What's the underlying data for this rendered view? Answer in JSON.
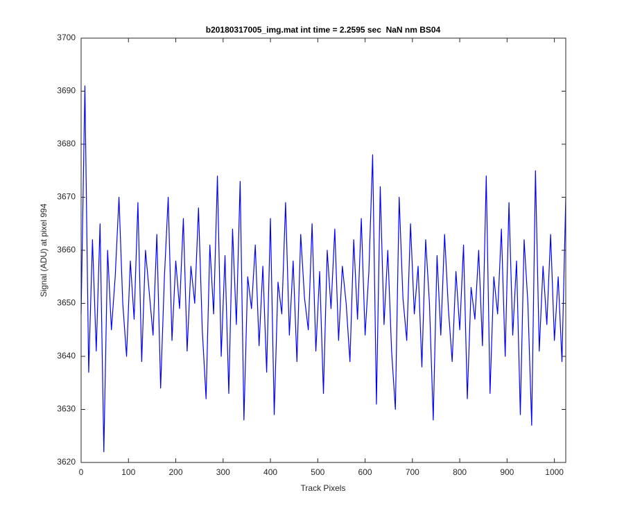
{
  "chart_data": {
    "type": "line",
    "title": "b20180317005_img.mat int time = 2.2595 sec  NaN nm BS04",
    "xlabel": "Track Pixels",
    "ylabel": "Signal (ADU) at pixel 994",
    "xlim": [
      0,
      1024
    ],
    "ylim": [
      3620,
      3700
    ],
    "xticks": [
      0,
      100,
      200,
      300,
      400,
      500,
      600,
      700,
      800,
      900,
      1000
    ],
    "yticks": [
      3620,
      3630,
      3640,
      3650,
      3660,
      3670,
      3680,
      3690,
      3700
    ],
    "series": [
      {
        "color": "#0000ff",
        "x": [
          0,
          8,
          16,
          24,
          32,
          40,
          48,
          56,
          64,
          72,
          80,
          88,
          96,
          104,
          112,
          120,
          128,
          136,
          144,
          152,
          160,
          168,
          176,
          184,
          192,
          200,
          208,
          216,
          224,
          232,
          240,
          248,
          256,
          264,
          272,
          280,
          288,
          296,
          304,
          312,
          320,
          328,
          336,
          344,
          352,
          360,
          368,
          376,
          384,
          392,
          400,
          408,
          416,
          424,
          432,
          440,
          448,
          456,
          464,
          472,
          480,
          488,
          496,
          504,
          512,
          520,
          528,
          536,
          544,
          552,
          560,
          568,
          576,
          584,
          592,
          600,
          608,
          616,
          624,
          632,
          640,
          648,
          656,
          664,
          672,
          680,
          688,
          696,
          704,
          712,
          720,
          728,
          736,
          744,
          752,
          760,
          768,
          776,
          784,
          792,
          800,
          808,
          816,
          824,
          832,
          840,
          848,
          856,
          864,
          872,
          880,
          888,
          896,
          904,
          912,
          920,
          928,
          936,
          944,
          952,
          960,
          968,
          976,
          984,
          992,
          1000,
          1008,
          1016,
          1024
        ],
        "values": [
          3648,
          3691,
          3637,
          3662,
          3641,
          3665,
          3622,
          3660,
          3645,
          3655,
          3670,
          3650,
          3640,
          3658,
          3647,
          3669,
          3639,
          3660,
          3652,
          3644,
          3663,
          3634,
          3655,
          3670,
          3643,
          3658,
          3649,
          3666,
          3641,
          3657,
          3650,
          3668,
          3645,
          3632,
          3661,
          3648,
          3674,
          3640,
          3659,
          3633,
          3664,
          3646,
          3673,
          3628,
          3655,
          3649,
          3661,
          3642,
          3657,
          3637,
          3666,
          3629,
          3654,
          3648,
          3669,
          3644,
          3658,
          3639,
          3663,
          3651,
          3645,
          3665,
          3641,
          3656,
          3633,
          3660,
          3649,
          3664,
          3643,
          3657,
          3650,
          3639,
          3662,
          3647,
          3666,
          3644,
          3656,
          3678,
          3631,
          3672,
          3646,
          3660,
          3641,
          3630,
          3670,
          3651,
          3643,
          3665,
          3648,
          3657,
          3638,
          3662,
          3650,
          3628,
          3659,
          3644,
          3663,
          3649,
          3639,
          3656,
          3645,
          3661,
          3632,
          3653,
          3647,
          3660,
          3642,
          3674,
          3633,
          3655,
          3648,
          3664,
          3640,
          3669,
          3644,
          3658,
          3629,
          3662,
          3650,
          3627,
          3675,
          3641,
          3657,
          3646,
          3663,
          3643,
          3655,
          3639,
          3670
        ]
      }
    ]
  }
}
